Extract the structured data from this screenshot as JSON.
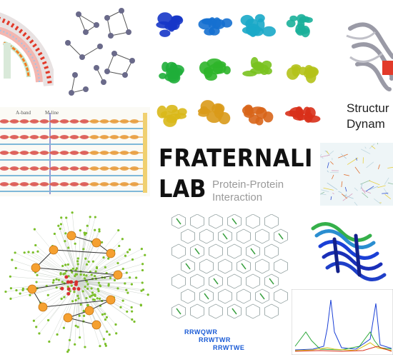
{
  "lab": {
    "title_line1": "FRATERNALI",
    "title_line2": "LAB",
    "subtitle_line1": "Protein-Protein",
    "subtitle_line2": "Interaction"
  },
  "structure_caption": {
    "line1": "Structur",
    "line2": "Dynam"
  },
  "sarcomere": {
    "a_band_label": "A-band",
    "m_line_label": "M-line"
  },
  "sequences": {
    "seq1_a": "RRWQ",
    "seq1_b": "WR",
    "seq2_a": "RRWTW",
    "seq2_b": "R",
    "seq3": "RRWTWE"
  },
  "colors": {
    "accent_blue": "#1a5bd6",
    "protein_blue": "#1a3fd6",
    "protein_green": "#2ea83c",
    "protein_yellow": "#d9c21a",
    "protein_red": "#d8301a",
    "network_green": "#7bbf2a",
    "network_orange": "#f5a030"
  }
}
